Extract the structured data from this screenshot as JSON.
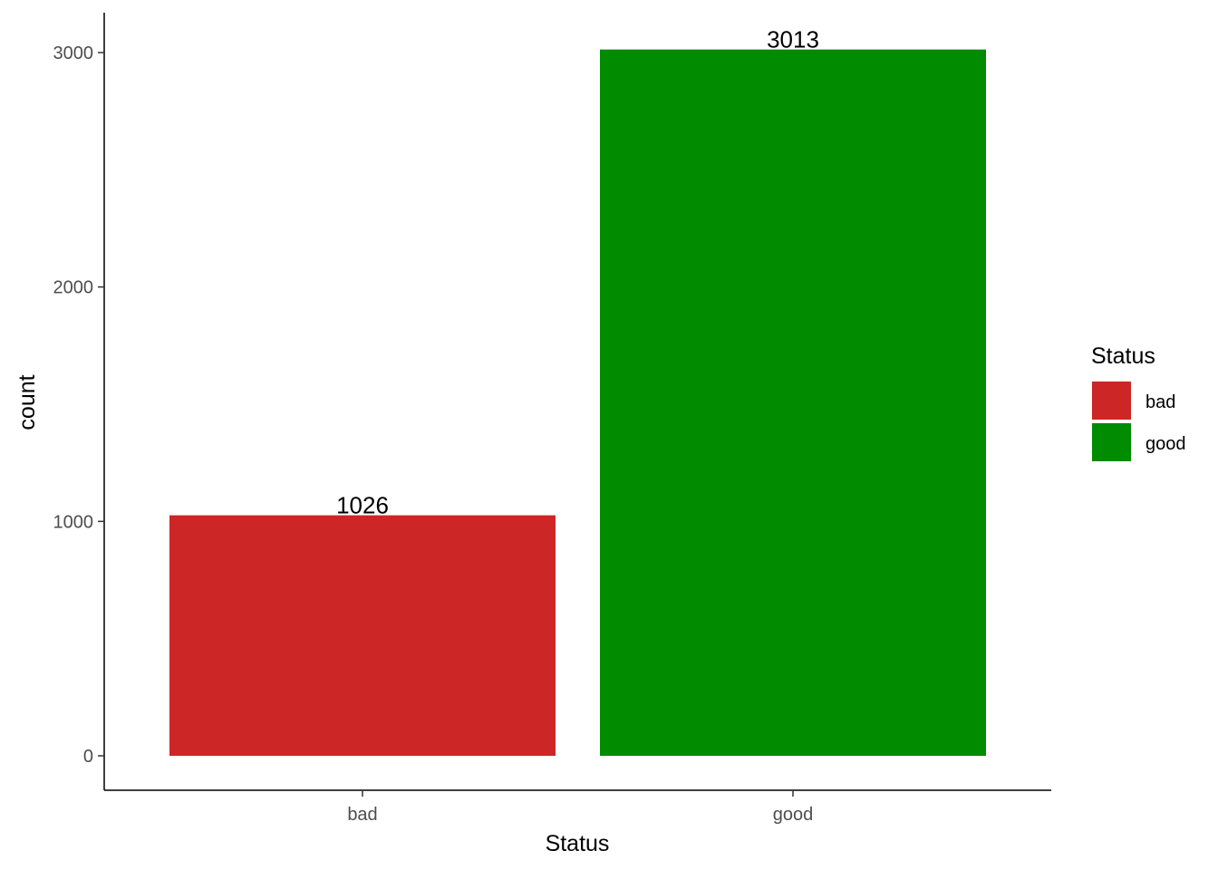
{
  "chart_data": {
    "type": "bar",
    "title": "",
    "xlabel": "Status",
    "ylabel": "count",
    "categories": [
      "bad",
      "good"
    ],
    "values": [
      1026,
      3013
    ],
    "data_labels": [
      "1026",
      "3013"
    ],
    "colors": [
      "#cd2626",
      "#008b00"
    ],
    "ylim": [
      0,
      3160
    ],
    "yticks": [
      0,
      1000,
      2000,
      3000
    ],
    "ytick_labels": [
      "0",
      "1000",
      "2000",
      "3000"
    ],
    "grid": false,
    "legend": {
      "title": "Status",
      "position": "right",
      "entries": [
        {
          "label": "bad",
          "color": "#cd2626"
        },
        {
          "label": "good",
          "color": "#008b00"
        }
      ]
    }
  }
}
